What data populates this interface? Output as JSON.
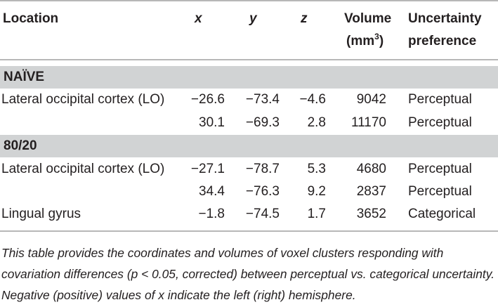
{
  "headers": {
    "location": "Location",
    "x": "x",
    "y": "y",
    "z": "z",
    "volume_line1": "Volume",
    "volume_line2_pre": "(mm",
    "volume_sup": "3",
    "volume_line2_post": ")",
    "uncertainty_line1": "Uncertainty",
    "uncertainty_line2": "preference"
  },
  "groups": [
    {
      "label": "NAÏVE",
      "rows": [
        {
          "location": "Lateral occipital cortex (LO)",
          "x": "−26.6",
          "y": "−73.4",
          "z": "−4.6",
          "volume": "9042",
          "preference": "Perceptual"
        },
        {
          "location": "",
          "x": "30.1",
          "y": "−69.3",
          "z": "2.8",
          "volume": "11170",
          "preference": "Perceptual"
        }
      ]
    },
    {
      "label": "80/20",
      "rows": [
        {
          "location": "Lateral occipital cortex (LO)",
          "x": "−27.1",
          "y": "−78.7",
          "z": "5.3",
          "volume": "4680",
          "preference": "Perceptual"
        },
        {
          "location": "",
          "x": "34.4",
          "y": "−76.3",
          "z": "9.2",
          "volume": "2837",
          "preference": "Perceptual"
        },
        {
          "location": "Lingual gyrus",
          "x": "−1.8",
          "y": "−74.5",
          "z": "1.7",
          "volume": "3652",
          "preference": "Categorical"
        }
      ]
    }
  ],
  "footnote": "This table provides the coordinates and volumes of voxel clusters responding with covariation differences (p < 0.05, corrected) between perceptual vs. categorical uncertainty. Negative (positive) values of x indicate the left (right) hemisphere."
}
